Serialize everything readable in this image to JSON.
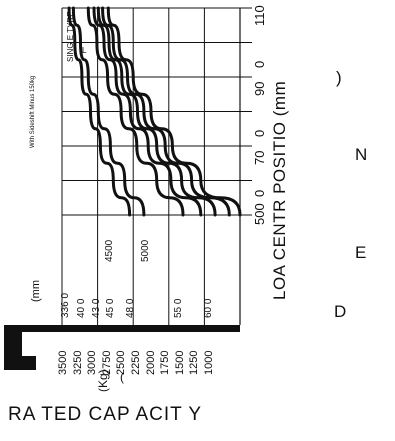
{
  "chart_data": {
    "type": "line",
    "orientation": "rotated-90-ccw",
    "x_axis": {
      "label": "LOA CENTR POSITIO (mm",
      "scattered_letters": [
        "D",
        "E",
        "N",
        ")"
      ],
      "ticks": [
        "500",
        "70",
        "90",
        "110"
      ],
      "tick_suffix": [
        "0",
        "0",
        "0",
        "0"
      ],
      "range": [
        500,
        1100
      ]
    },
    "y_axis": {
      "label": "RA TED CAP ACIT Y",
      "unit": "(Kg)",
      "unit_paren": "(",
      "ticks": [
        "3500",
        "3250",
        "3000",
        "2750",
        "2500",
        "2250",
        "2000",
        "1750",
        "1500",
        "1250",
        "1000"
      ],
      "range": [
        1000,
        3500
      ]
    },
    "mast_labels": {
      "unit": "(mm",
      "rows": [
        "336 0",
        "40 0",
        "43 0",
        "45 0",
        "48 0",
        "55 0",
        "60 0"
      ]
    },
    "height_markers": [
      "4500",
      "5000"
    ],
    "side_notes": {
      "tyre": "SING E TYRE",
      "tyre_sub": "L",
      "note": "With Sideshift Minus 150kg"
    },
    "series": [
      {
        "values": [
          [
            500,
            3500
          ],
          [
            600,
            2950
          ],
          [
            700,
            2550
          ],
          [
            800,
            2250
          ],
          [
            900,
            2000
          ],
          [
            1000,
            1800
          ],
          [
            1100,
            1650
          ]
        ]
      },
      {
        "values": [
          [
            500,
            3350
          ],
          [
            600,
            2820
          ],
          [
            700,
            2450
          ],
          [
            800,
            2150
          ],
          [
            900,
            1920
          ],
          [
            1000,
            1720
          ],
          [
            1100,
            1570
          ]
        ]
      },
      {
        "values": [
          [
            500,
            3150
          ],
          [
            600,
            2680
          ],
          [
            700,
            2330
          ],
          [
            800,
            2060
          ],
          [
            900,
            1840
          ],
          [
            1000,
            1660
          ],
          [
            1100,
            1510
          ]
        ]
      },
      {
        "values": [
          [
            500,
            2950
          ],
          [
            600,
            2530
          ],
          [
            700,
            2210
          ],
          [
            800,
            1960
          ],
          [
            900,
            1760
          ],
          [
            1000,
            1590
          ],
          [
            1100,
            1450
          ]
        ]
      },
      {
        "values": [
          [
            500,
            2700
          ],
          [
            600,
            2330
          ],
          [
            700,
            2050
          ],
          [
            800,
            1830
          ],
          [
            900,
            1640
          ],
          [
            1000,
            1490
          ],
          [
            1100,
            1370
          ]
        ]
      },
      {
        "values": [
          [
            500,
            2150
          ],
          [
            600,
            1880
          ],
          [
            700,
            1680
          ],
          [
            800,
            1510
          ],
          [
            900,
            1370
          ],
          [
            1000,
            1260
          ],
          [
            1100,
            1160
          ]
        ]
      },
      {
        "values": [
          [
            500,
            1950
          ],
          [
            600,
            1720
          ],
          [
            700,
            1540
          ],
          [
            800,
            1400
          ],
          [
            900,
            1280
          ],
          [
            1000,
            1180
          ],
          [
            1100,
            1100
          ]
        ]
      }
    ],
    "grid": true,
    "colors": {
      "line": "#111111",
      "grid": "#111111",
      "base": "#111111"
    }
  }
}
